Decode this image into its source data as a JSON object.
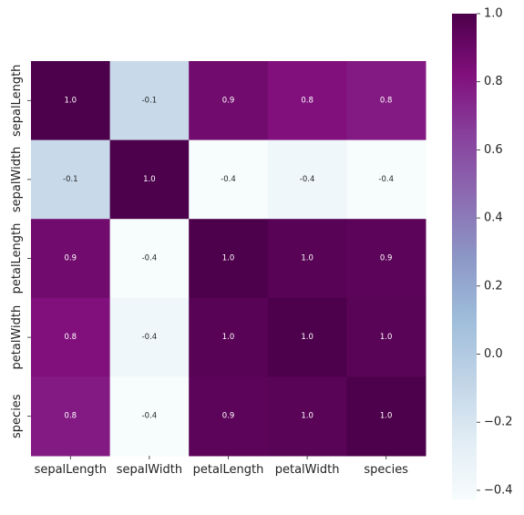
{
  "chart_data": {
    "type": "heatmap",
    "title": "",
    "xlabel": "",
    "ylabel": "",
    "x_categories": [
      "sepalLength",
      "sepalWidth",
      "petalLength",
      "petalWidth",
      "species"
    ],
    "y_categories": [
      "sepalLength",
      "sepalWidth",
      "petalLength",
      "petalWidth",
      "species"
    ],
    "values": [
      [
        1.0,
        -0.1,
        0.9,
        0.8,
        0.8
      ],
      [
        -0.1,
        1.0,
        -0.4,
        -0.4,
        -0.4
      ],
      [
        0.9,
        -0.4,
        1.0,
        1.0,
        0.9
      ],
      [
        0.8,
        -0.4,
        1.0,
        1.0,
        1.0
      ],
      [
        0.8,
        -0.4,
        0.9,
        1.0,
        1.0
      ]
    ],
    "exact_values": [
      [
        1.0,
        -0.117,
        0.872,
        0.818,
        0.782
      ],
      [
        -0.117,
        1.0,
        -0.428,
        -0.366,
        -0.427
      ],
      [
        0.872,
        -0.428,
        1.0,
        0.963,
        0.949
      ],
      [
        0.818,
        -0.366,
        0.963,
        1.0,
        0.956
      ],
      [
        0.782,
        -0.427,
        0.949,
        0.956,
        1.0
      ]
    ],
    "annotations": [
      [
        "1.0",
        "-0.1",
        "0.9",
        "0.8",
        "0.8"
      ],
      [
        "-0.1",
        "1.0",
        "-0.4",
        "-0.4",
        "-0.4"
      ],
      [
        "0.9",
        "-0.4",
        "1.0",
        "1.0",
        "0.9"
      ],
      [
        "0.8",
        "-0.4",
        "1.0",
        "1.0",
        "1.0"
      ],
      [
        "0.8",
        "-0.4",
        "0.9",
        "1.0",
        "1.0"
      ]
    ],
    "colormap": "BuPu",
    "colormap_stops": [
      "#f7fcfd",
      "#e0ecf4",
      "#bfd3e6",
      "#9ebcda",
      "#8c96c6",
      "#8c6bb1",
      "#88419d",
      "#810f7c",
      "#4d004b"
    ],
    "vmin": -0.427,
    "vmax": 1.0,
    "colorbar": {
      "ticks": [
        1.0,
        0.8,
        0.6,
        0.4,
        0.2,
        0.0,
        -0.2,
        -0.4
      ],
      "tick_labels": [
        "1.0",
        "0.8",
        "0.6",
        "0.4",
        "0.2",
        "0.0",
        "−0.2",
        "−0.4"
      ]
    },
    "grid": false,
    "legend": "colorbar-right"
  }
}
